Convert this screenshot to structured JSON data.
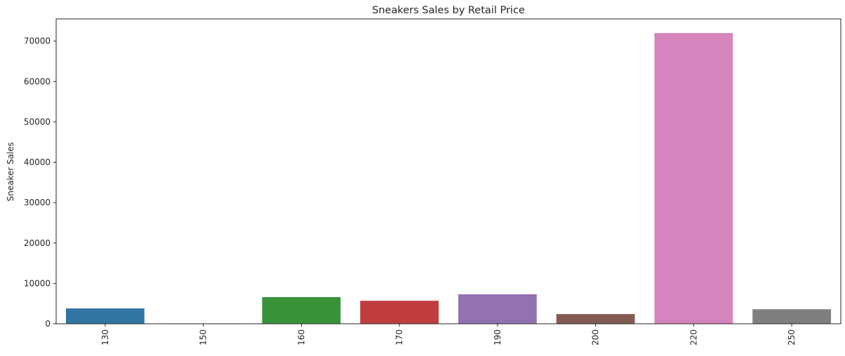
{
  "chart_data": {
    "type": "bar",
    "title": "Sneakers Sales by Retail Price",
    "xlabel": "",
    "ylabel": "Sneaker Sales",
    "categories": [
      "130",
      "150",
      "160",
      "170",
      "190",
      "200",
      "220",
      "250"
    ],
    "values": [
      3800,
      100,
      6600,
      5700,
      7300,
      2400,
      72000,
      3600
    ],
    "colors": [
      "#3274a1",
      "#e1812c",
      "#3a923a",
      "#c03d3e",
      "#9372b2",
      "#845b53",
      "#d684bd",
      "#7f7f7f"
    ],
    "ylim": [
      0,
      75500
    ],
    "yticks": [
      0,
      10000,
      20000,
      30000,
      40000,
      50000,
      60000,
      70000
    ],
    "ytick_labels": [
      "0",
      "10000",
      "20000",
      "30000",
      "40000",
      "50000",
      "60000",
      "70000"
    ],
    "grid": false,
    "legend": "none"
  }
}
